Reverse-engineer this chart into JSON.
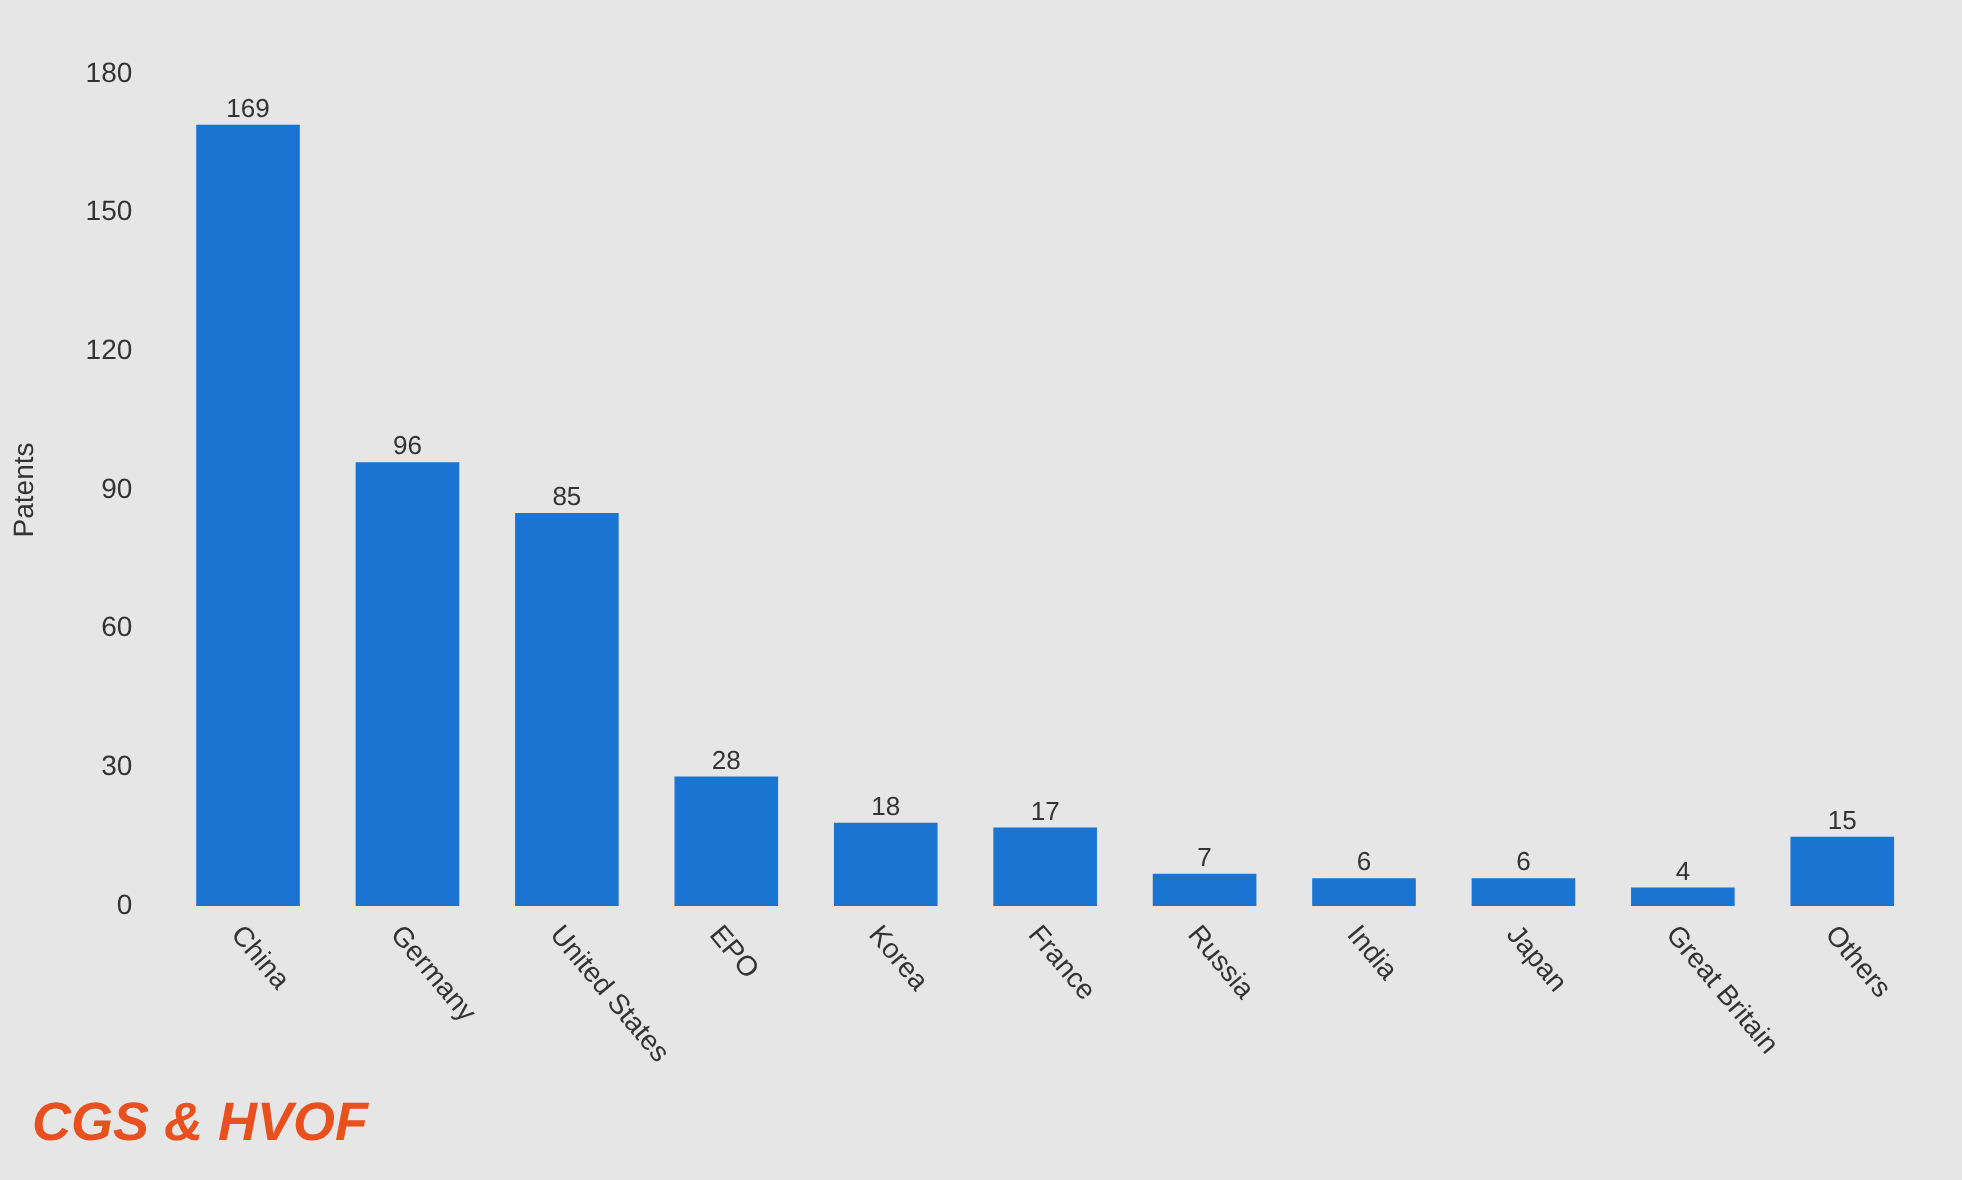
{
  "chart_data": {
    "type": "bar",
    "categories": [
      "China",
      "Germany",
      "United States",
      "EPO",
      "Korea",
      "France",
      "Russia",
      "India",
      "Japan",
      "Great Britain",
      "Others"
    ],
    "values": [
      169,
      96,
      85,
      28,
      18,
      17,
      7,
      6,
      6,
      4,
      15
    ],
    "color": "#1a75d2",
    "ylabel": "Patents",
    "ylim": [
      0,
      180
    ],
    "yticks": [
      0,
      30,
      60,
      90,
      120,
      150,
      180
    ],
    "grid": false,
    "legend": false,
    "data_labels": true,
    "annotations": [
      "CGS & HVOF"
    ]
  }
}
